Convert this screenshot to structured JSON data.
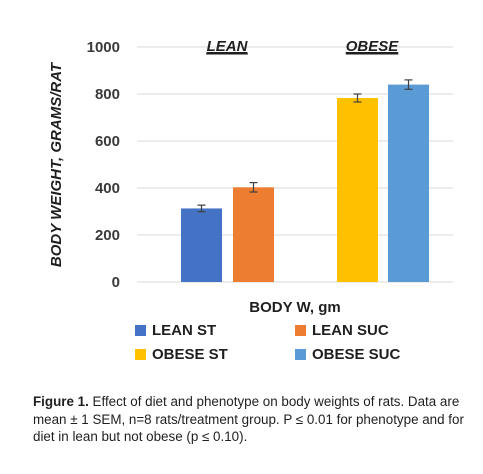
{
  "chart_data": {
    "type": "bar",
    "ylabel": "BODY WEIGHT, GRAMS/RAT",
    "xlabel": "BODY W, gm",
    "ylim": [
      0,
      1000
    ],
    "yticks": [
      "1000",
      "800",
      "600",
      "400",
      "200",
      "0"
    ],
    "grid": true,
    "legend_position": "bottom",
    "groups": [
      "LEAN",
      "OBESE"
    ],
    "series": [
      {
        "name": "LEAN ST",
        "value": 313,
        "sem": 14,
        "group": "LEAN",
        "color": "#4472C4"
      },
      {
        "name": "LEAN SUC",
        "value": 403,
        "sem": 20,
        "group": "LEAN",
        "color": "#ED7D31"
      },
      {
        "name": "OBESE ST",
        "value": 783,
        "sem": 17,
        "group": "OBESE",
        "color": "#FFC000"
      },
      {
        "name": "OBESE SUC",
        "value": 840,
        "sem": 20,
        "group": "OBESE",
        "color": "#5B9BD5"
      }
    ]
  },
  "caption": {
    "label": "Figure 1.",
    "text": " Effect of diet and phenotype on body weights of rats. Data are mean ± 1 SEM, n=8 rats/treatment group. P ≤ 0.01 for phenotype and for diet in lean but not obese (p ≤ 0.10)."
  }
}
